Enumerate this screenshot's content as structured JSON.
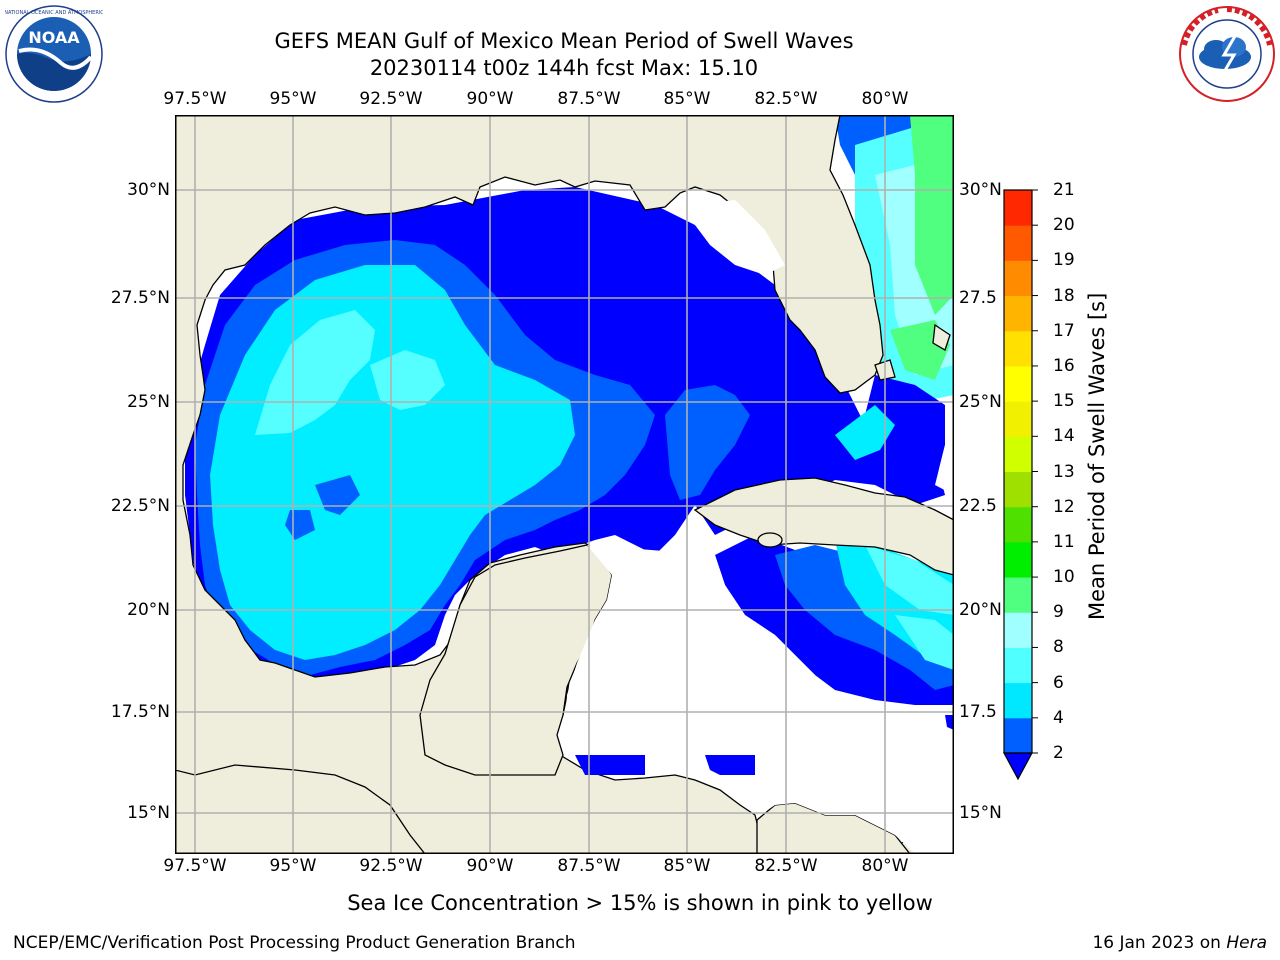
{
  "title": {
    "line1": "GEFS MEAN Gulf of Mexico Mean Period of Swell Waves",
    "line2": "20230114 t00z 144h fcst   Max: 15.10"
  },
  "logos": {
    "noaa": {
      "text": "NOAA",
      "icon": "noaa-logo-icon",
      "ring_text": "NATIONAL OCEANIC AND ATMOSPHERIC ADMINISTRATION · U.S. DEPARTMENT OF COMMERCE"
    },
    "nws": {
      "icon": "nws-logo-icon",
      "ring_text": "NATIONAL WEATHER SERVICE"
    }
  },
  "map": {
    "lon_ticks": [
      "97.5°W",
      "95°W",
      "92.5°W",
      "90°W",
      "87.5°W",
      "85°W",
      "82.5°W",
      "80°W"
    ],
    "lat_ticks_left": [
      "30°N",
      "27.5°N",
      "25°N",
      "22.5°N",
      "20°N",
      "17.5°N",
      "15°N"
    ],
    "lat_ticks_right": [
      "30°N",
      "27.5",
      "25°N",
      "22.5",
      "20°N",
      "17.5",
      "15°N"
    ],
    "colors": {
      "land": "#efeedd",
      "water_none": "#ffffff",
      "grid": "#b0b0b0",
      "coast": "#000000"
    }
  },
  "colorbar": {
    "label": "Mean Period of Swell Waves [s]",
    "levels": [
      "2",
      "4",
      "6",
      "8",
      "9",
      "10",
      "11",
      "12",
      "13",
      "14",
      "15",
      "16",
      "17",
      "18",
      "19",
      "20",
      "21"
    ],
    "colors": [
      "#0060ff",
      "#00e8ff",
      "#50ffff",
      "#a0ffff",
      "#50ff80",
      "#00ee00",
      "#50e000",
      "#a0e000",
      "#d0ff00",
      "#f0f000",
      "#ffff00",
      "#ffe000",
      "#ffb400",
      "#ff8c00",
      "#ff5a00",
      "#ff2800",
      "#ff0000"
    ],
    "under_color": "#0000ff"
  },
  "note": "Sea Ice Concentration > 15% is shown in pink to yellow",
  "footer": {
    "left": "NCEP/EMC/Verification Post Processing Product Generation Branch",
    "right_prefix": "16 Jan 2023 on ",
    "right_host": "Hera"
  }
}
